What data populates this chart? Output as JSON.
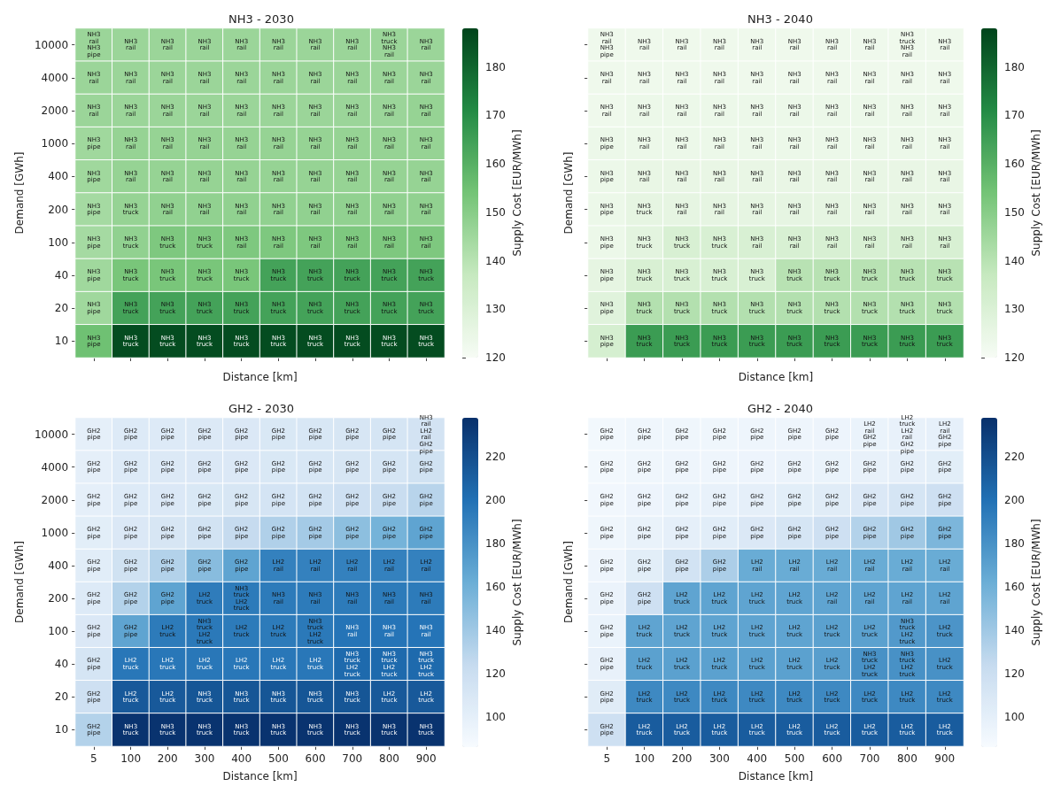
{
  "chart_data": [
    {
      "type": "heatmap",
      "title": "NH3 - 2030",
      "xlabel": "Distance [km]",
      "ylabel": "Demand [GWh]",
      "clabel": "Supply Cost [EUR/MWh]",
      "tick_labels": "y",
      "grid": false,
      "colors": [
        "#f7fcf5",
        "#c7e9c0",
        "#74c476",
        "#238b45",
        "#00441b"
      ],
      "categories": [
        "5",
        "100",
        "200",
        "300",
        "400",
        "500",
        "600",
        "700",
        "800",
        "900"
      ],
      "y_categories": [
        "10000",
        "4000",
        "2000",
        "1000",
        "400",
        "200",
        "100",
        "40",
        "20",
        "10"
      ],
      "clim": [
        120,
        188
      ],
      "cticks": [
        120,
        130,
        140,
        150,
        160,
        170,
        180
      ],
      "cells": [
        [
          146,
          146,
          146,
          146,
          146,
          146,
          146,
          146,
          146,
          146
        ],
        [
          146,
          146,
          146,
          146,
          146,
          146,
          146,
          146,
          146,
          146
        ],
        [
          146,
          146,
          146,
          146,
          146,
          146,
          146,
          146,
          146,
          147
        ],
        [
          145,
          147,
          147,
          147,
          147,
          147,
          147,
          147,
          147,
          147
        ],
        [
          145,
          147,
          147,
          147,
          147,
          147,
          147,
          147,
          147,
          147
        ],
        [
          144,
          147,
          148,
          148,
          148,
          148,
          148,
          148,
          148,
          148
        ],
        [
          144,
          148,
          152,
          152,
          152,
          152,
          152,
          152,
          152,
          152
        ],
        [
          145,
          153,
          153,
          153,
          153,
          164,
          164,
          164,
          164,
          164
        ],
        [
          145,
          164,
          164,
          164,
          164,
          164,
          164,
          164,
          164,
          164
        ],
        [
          155,
          186,
          186,
          186,
          186,
          186,
          186,
          186,
          186,
          186
        ]
      ],
      "cell_labels": [
        [
          "NH3\nrail\nNH3\npipe",
          "NH3\nrail",
          "NH3\nrail",
          "NH3\nrail",
          "NH3\nrail",
          "NH3\nrail",
          "NH3\nrail",
          "NH3\nrail",
          "NH3\ntruck\nNH3\nrail",
          "NH3\nrail"
        ],
        [
          "NH3\nrail",
          "NH3\nrail",
          "NH3\nrail",
          "NH3\nrail",
          "NH3\nrail",
          "NH3\nrail",
          "NH3\nrail",
          "NH3\nrail",
          "NH3\nrail",
          "NH3\nrail"
        ],
        [
          "NH3\nrail",
          "NH3\nrail",
          "NH3\nrail",
          "NH3\nrail",
          "NH3\nrail",
          "NH3\nrail",
          "NH3\nrail",
          "NH3\nrail",
          "NH3\nrail",
          "NH3\nrail"
        ],
        [
          "NH3\npipe",
          "NH3\nrail",
          "NH3\nrail",
          "NH3\nrail",
          "NH3\nrail",
          "NH3\nrail",
          "NH3\nrail",
          "NH3\nrail",
          "NH3\nrail",
          "NH3\nrail"
        ],
        [
          "NH3\npipe",
          "NH3\nrail",
          "NH3\nrail",
          "NH3\nrail",
          "NH3\nrail",
          "NH3\nrail",
          "NH3\nrail",
          "NH3\nrail",
          "NH3\nrail",
          "NH3\nrail"
        ],
        [
          "NH3\npipe",
          "NH3\ntruck",
          "NH3\nrail",
          "NH3\nrail",
          "NH3\nrail",
          "NH3\nrail",
          "NH3\nrail",
          "NH3\nrail",
          "NH3\nrail",
          "NH3\nrail"
        ],
        [
          "NH3\npipe",
          "NH3\ntruck",
          "NH3\ntruck",
          "NH3\ntruck",
          "NH3\nrail",
          "NH3\nrail",
          "NH3\nrail",
          "NH3\nrail",
          "NH3\nrail",
          "NH3\nrail"
        ],
        [
          "NH3\npipe",
          "NH3\ntruck",
          "NH3\ntruck",
          "NH3\ntruck",
          "NH3\ntruck",
          "NH3\ntruck",
          "NH3\ntruck",
          "NH3\ntruck",
          "NH3\ntruck",
          "NH3\ntruck"
        ],
        [
          "NH3\npipe",
          "NH3\ntruck",
          "NH3\ntruck",
          "NH3\ntruck",
          "NH3\ntruck",
          "NH3\ntruck",
          "NH3\ntruck",
          "NH3\ntruck",
          "NH3\ntruck",
          "NH3\ntruck"
        ],
        [
          "NH3\npipe",
          "NH3\ntruck",
          "NH3\ntruck",
          "NH3\ntruck",
          "NH3\ntruck",
          "NH3\ntruck",
          "NH3\ntruck",
          "NH3\ntruck",
          "NH3\ntruck",
          "NH3\ntruck"
        ]
      ]
    },
    {
      "type": "heatmap",
      "title": "NH3 - 2040",
      "xlabel": "Distance [km]",
      "ylabel": "Demand [GWh]",
      "clabel": "Supply Cost [EUR/MWh]",
      "tick_labels": false,
      "grid": false,
      "colors": [
        "#f7fcf5",
        "#c7e9c0",
        "#74c476",
        "#238b45",
        "#00441b"
      ],
      "categories": [
        "5",
        "100",
        "200",
        "300",
        "400",
        "500",
        "600",
        "700",
        "800",
        "900"
      ],
      "y_categories": [
        "10000",
        "4000",
        "2000",
        "1000",
        "400",
        "200",
        "100",
        "40",
        "20",
        "10"
      ],
      "clim": [
        120,
        188
      ],
      "cticks": [
        120,
        130,
        140,
        150,
        160,
        170,
        180
      ],
      "cells": [
        [
          123,
          123,
          123,
          123,
          123,
          123,
          123,
          123,
          123,
          123
        ],
        [
          123,
          123,
          123,
          123,
          123,
          123,
          123,
          123,
          123,
          123
        ],
        [
          123,
          124,
          124,
          124,
          124,
          124,
          124,
          124,
          124,
          124
        ],
        [
          124,
          124,
          124,
          124,
          124,
          124,
          124,
          124,
          124,
          124
        ],
        [
          124,
          125,
          125,
          125,
          125,
          125,
          125,
          125,
          125,
          125
        ],
        [
          124,
          126,
          126,
          126,
          126,
          126,
          126,
          126,
          126,
          126
        ],
        [
          124,
          127,
          131,
          131,
          131,
          131,
          131,
          131,
          131,
          131
        ],
        [
          126,
          131,
          131,
          131,
          131,
          140,
          140,
          140,
          140,
          140
        ],
        [
          128,
          141,
          141,
          141,
          141,
          141,
          141,
          141,
          141,
          141
        ],
        [
          132,
          166,
          166,
          166,
          166,
          166,
          166,
          166,
          166,
          166
        ]
      ],
      "cell_labels": [
        [
          "NH3\nrail\nNH3\npipe",
          "NH3\nrail",
          "NH3\nrail",
          "NH3\nrail",
          "NH3\nrail",
          "NH3\nrail",
          "NH3\nrail",
          "NH3\nrail",
          "NH3\ntruck\nNH3\nrail",
          "NH3\nrail"
        ],
        [
          "NH3\nrail",
          "NH3\nrail",
          "NH3\nrail",
          "NH3\nrail",
          "NH3\nrail",
          "NH3\nrail",
          "NH3\nrail",
          "NH3\nrail",
          "NH3\nrail",
          "NH3\nrail"
        ],
        [
          "NH3\nrail",
          "NH3\nrail",
          "NH3\nrail",
          "NH3\nrail",
          "NH3\nrail",
          "NH3\nrail",
          "NH3\nrail",
          "NH3\nrail",
          "NH3\nrail",
          "NH3\nrail"
        ],
        [
          "NH3\npipe",
          "NH3\nrail",
          "NH3\nrail",
          "NH3\nrail",
          "NH3\nrail",
          "NH3\nrail",
          "NH3\nrail",
          "NH3\nrail",
          "NH3\nrail",
          "NH3\nrail"
        ],
        [
          "NH3\npipe",
          "NH3\nrail",
          "NH3\nrail",
          "NH3\nrail",
          "NH3\nrail",
          "NH3\nrail",
          "NH3\nrail",
          "NH3\nrail",
          "NH3\nrail",
          "NH3\nrail"
        ],
        [
          "NH3\npipe",
          "NH3\ntruck",
          "NH3\nrail",
          "NH3\nrail",
          "NH3\nrail",
          "NH3\nrail",
          "NH3\nrail",
          "NH3\nrail",
          "NH3\nrail",
          "NH3\nrail"
        ],
        [
          "NH3\npipe",
          "NH3\ntruck",
          "NH3\ntruck",
          "NH3\ntruck",
          "NH3\nrail",
          "NH3\nrail",
          "NH3\nrail",
          "NH3\nrail",
          "NH3\nrail",
          "NH3\nrail"
        ],
        [
          "NH3\npipe",
          "NH3\ntruck",
          "NH3\ntruck",
          "NH3\ntruck",
          "NH3\ntruck",
          "NH3\ntruck",
          "NH3\ntruck",
          "NH3\ntruck",
          "NH3\ntruck",
          "NH3\ntruck"
        ],
        [
          "NH3\npipe",
          "NH3\ntruck",
          "NH3\ntruck",
          "NH3\ntruck",
          "NH3\ntruck",
          "NH3\ntruck",
          "NH3\ntruck",
          "NH3\ntruck",
          "NH3\ntruck",
          "NH3\ntruck"
        ],
        [
          "NH3\npipe",
          "NH3\ntruck",
          "NH3\ntruck",
          "NH3\ntruck",
          "NH3\ntruck",
          "NH3\ntruck",
          "NH3\ntruck",
          "NH3\ntruck",
          "NH3\ntruck",
          "NH3\ntruck"
        ]
      ]
    },
    {
      "type": "heatmap",
      "title": "GH2 - 2030",
      "xlabel": "Distance [km]",
      "ylabel": "Demand [GWh]",
      "clabel": "Supply Cost [EUR/MWh]",
      "grid": false,
      "colors": [
        "#f7fbff",
        "#c6dbef",
        "#6baed6",
        "#2171b5",
        "#08306b"
      ],
      "categories": [
        "5",
        "100",
        "200",
        "300",
        "400",
        "500",
        "600",
        "700",
        "800",
        "900"
      ],
      "y_categories": [
        "10000",
        "4000",
        "2000",
        "1000",
        "400",
        "200",
        "100",
        "40",
        "20",
        "10"
      ],
      "clim": [
        86,
        238
      ],
      "cticks": [
        100,
        120,
        140,
        160,
        180,
        200,
        220
      ],
      "cells": [
        [
          100,
          106,
          106,
          107,
          108,
          109,
          110,
          111,
          112,
          114
        ],
        [
          100,
          106,
          107,
          108,
          108,
          109,
          110,
          111,
          112,
          116
        ],
        [
          100,
          106,
          108,
          109,
          111,
          113,
          115,
          118,
          122,
          130
        ],
        [
          102,
          108,
          111,
          115,
          124,
          133,
          138,
          148,
          158,
          168
        ],
        [
          103,
          116,
          132,
          150,
          168,
          190,
          190,
          190,
          190,
          190
        ],
        [
          106,
          132,
          168,
          193,
          194,
          194,
          194,
          194,
          194,
          194
        ],
        [
          108,
          168,
          194,
          195,
          194,
          194,
          195,
          198,
          198,
          198
        ],
        [
          112,
          196,
          196,
          196,
          196,
          196,
          196,
          204,
          204,
          204
        ],
        [
          118,
          214,
          214,
          216,
          216,
          216,
          216,
          216,
          214,
          214
        ],
        [
          132,
          236,
          236,
          236,
          236,
          236,
          236,
          236,
          236,
          236
        ]
      ],
      "cell_labels": [
        [
          "GH2\npipe",
          "GH2\npipe",
          "GH2\npipe",
          "GH2\npipe",
          "GH2\npipe",
          "GH2\npipe",
          "GH2\npipe",
          "GH2\npipe",
          "GH2\npipe",
          "NH3\nrail\nLH2\nrail\nGH2\npipe"
        ],
        [
          "GH2\npipe",
          "GH2\npipe",
          "GH2\npipe",
          "GH2\npipe",
          "GH2\npipe",
          "GH2\npipe",
          "GH2\npipe",
          "GH2\npipe",
          "GH2\npipe",
          "GH2\npipe"
        ],
        [
          "GH2\npipe",
          "GH2\npipe",
          "GH2\npipe",
          "GH2\npipe",
          "GH2\npipe",
          "GH2\npipe",
          "GH2\npipe",
          "GH2\npipe",
          "GH2\npipe",
          "GH2\npipe"
        ],
        [
          "GH2\npipe",
          "GH2\npipe",
          "GH2\npipe",
          "GH2\npipe",
          "GH2\npipe",
          "GH2\npipe",
          "GH2\npipe",
          "GH2\npipe",
          "GH2\npipe",
          "GH2\npipe"
        ],
        [
          "GH2\npipe",
          "GH2\npipe",
          "GH2\npipe",
          "GH2\npipe",
          "GH2\npipe",
          "LH2\nrail",
          "LH2\nrail",
          "LH2\nrail",
          "LH2\nrail",
          "LH2\nrail"
        ],
        [
          "GH2\npipe",
          "GH2\npipe",
          "GH2\npipe",
          "LH2\ntruck",
          "NH3\ntruck\nLH2\ntruck",
          "NH3\nrail",
          "NH3\nrail",
          "NH3\nrail",
          "NH3\nrail",
          "NH3\nrail"
        ],
        [
          "GH2\npipe",
          "GH2\npipe",
          "LH2\ntruck",
          "NH3\ntruck\nLH2\ntruck",
          "LH2\ntruck",
          "LH2\ntruck",
          "NH3\ntruck\nLH2\ntruck",
          "NH3\nrail",
          "NH3\nrail",
          "NH3\nrail"
        ],
        [
          "GH2\npipe",
          "LH2\ntruck",
          "LH2\ntruck",
          "LH2\ntruck",
          "LH2\ntruck",
          "LH2\ntruck",
          "LH2\ntruck",
          "NH3\ntruck\nLH2\ntruck",
          "NH3\ntruck\nLH2\ntruck",
          "NH3\ntruck\nLH2\ntruck"
        ],
        [
          "GH2\npipe",
          "LH2\ntruck",
          "LH2\ntruck",
          "NH3\ntruck",
          "NH3\ntruck",
          "NH3\ntruck",
          "NH3\ntruck",
          "NH3\ntruck",
          "LH2\ntruck",
          "LH2\ntruck"
        ],
        [
          "GH2\npipe",
          "NH3\ntruck",
          "NH3\ntruck",
          "NH3\ntruck",
          "NH3\ntruck",
          "NH3\ntruck",
          "NH3\ntruck",
          "NH3\ntruck",
          "NH3\ntruck",
          "NH3\ntruck"
        ]
      ]
    },
    {
      "type": "heatmap",
      "title": "GH2 - 2040",
      "xlabel": "Distance [km]",
      "ylabel": "Demand [GWh]",
      "clabel": "Supply Cost [EUR/MWh]",
      "tick_labels": "x",
      "grid": false,
      "colors": [
        "#f7fbff",
        "#c6dbef",
        "#6baed6",
        "#2171b5",
        "#08306b"
      ],
      "categories": [
        "5",
        "100",
        "200",
        "300",
        "400",
        "500",
        "600",
        "700",
        "800",
        "900"
      ],
      "y_categories": [
        "10000",
        "4000",
        "2000",
        "1000",
        "400",
        "200",
        "100",
        "40",
        "20",
        "10"
      ],
      "clim": [
        86,
        238
      ],
      "cticks": [
        100,
        120,
        140,
        160,
        180,
        200,
        220
      ],
      "cells": [
        [
          90,
          92,
          92,
          92,
          93,
          93,
          94,
          96,
          98,
          99
        ],
        [
          90,
          92,
          93,
          93,
          94,
          95,
          96,
          98,
          100,
          102
        ],
        [
          91,
          94,
          96,
          98,
          100,
          102,
          104,
          108,
          112,
          118
        ],
        [
          92,
          97,
          100,
          103,
          108,
          112,
          118,
          132,
          140,
          155
        ],
        [
          93,
          102,
          115,
          135,
          163,
          163,
          163,
          163,
          163,
          163
        ],
        [
          95,
          118,
          168,
          168,
          168,
          168,
          168,
          168,
          168,
          168
        ],
        [
          96,
          168,
          168,
          168,
          168,
          168,
          170,
          170,
          175,
          178
        ],
        [
          98,
          170,
          170,
          170,
          170,
          170,
          172,
          180,
          180,
          180
        ],
        [
          104,
          185,
          185,
          185,
          185,
          185,
          185,
          185,
          185,
          185
        ],
        [
          118,
          212,
          212,
          212,
          212,
          212,
          212,
          212,
          212,
          212
        ]
      ],
      "cell_labels": [
        [
          "GH2\npipe",
          "GH2\npipe",
          "GH2\npipe",
          "GH2\npipe",
          "GH2\npipe",
          "GH2\npipe",
          "GH2\npipe",
          "LH2\nrail\nGH2\npipe",
          "LH2\ntruck\nLH2\nrail\nGH2\npipe",
          "LH2\nrail\nGH2\npipe"
        ],
        [
          "GH2\npipe",
          "GH2\npipe",
          "GH2\npipe",
          "GH2\npipe",
          "GH2\npipe",
          "GH2\npipe",
          "GH2\npipe",
          "GH2\npipe",
          "GH2\npipe",
          "GH2\npipe"
        ],
        [
          "GH2\npipe",
          "GH2\npipe",
          "GH2\npipe",
          "GH2\npipe",
          "GH2\npipe",
          "GH2\npipe",
          "GH2\npipe",
          "GH2\npipe",
          "GH2\npipe",
          "GH2\npipe"
        ],
        [
          "GH2\npipe",
          "GH2\npipe",
          "GH2\npipe",
          "GH2\npipe",
          "GH2\npipe",
          "GH2\npipe",
          "GH2\npipe",
          "GH2\npipe",
          "GH2\npipe",
          "GH2\npipe"
        ],
        [
          "GH2\npipe",
          "GH2\npipe",
          "GH2\npipe",
          "GH2\npipe",
          "LH2\nrail",
          "LH2\nrail",
          "LH2\nrail",
          "LH2\nrail",
          "LH2\nrail",
          "LH2\nrail"
        ],
        [
          "GH2\npipe",
          "GH2\npipe",
          "LH2\ntruck",
          "LH2\ntruck",
          "LH2\ntruck",
          "LH2\ntruck",
          "LH2\nrail",
          "LH2\nrail",
          "LH2\nrail",
          "LH2\nrail"
        ],
        [
          "GH2\npipe",
          "LH2\ntruck",
          "LH2\ntruck",
          "LH2\ntruck",
          "LH2\ntruck",
          "LH2\ntruck",
          "LH2\ntruck",
          "LH2\ntruck",
          "NH3\ntruck\nLH2\ntruck",
          "LH2\ntruck"
        ],
        [
          "GH2\npipe",
          "LH2\ntruck",
          "LH2\ntruck",
          "LH2\ntruck",
          "LH2\ntruck",
          "LH2\ntruck",
          "LH2\ntruck",
          "NH3\ntruck\nLH2\ntruck",
          "NH3\ntruck\nLH2\ntruck",
          "LH2\ntruck"
        ],
        [
          "GH2\npipe",
          "LH2\ntruck",
          "LH2\ntruck",
          "LH2\ntruck",
          "LH2\ntruck",
          "LH2\ntruck",
          "LH2\ntruck",
          "LH2\ntruck",
          "LH2\ntruck",
          "LH2\ntruck"
        ],
        [
          "GH2\npipe",
          "LH2\ntruck",
          "LH2\ntruck",
          "LH2\ntruck",
          "LH2\ntruck",
          "LH2\ntruck",
          "LH2\ntruck",
          "LH2\ntruck",
          "LH2\ntruck",
          "LH2\ntruck"
        ]
      ]
    }
  ]
}
